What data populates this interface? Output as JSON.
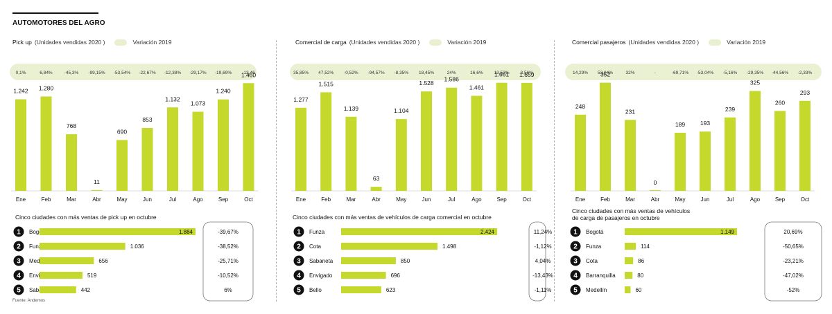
{
  "header": {
    "title": "AUTOMOTORES DEL AGRO"
  },
  "colors": {
    "bar": "#c5d92d",
    "pill": "#eaf1d3",
    "text": "#111111",
    "grid": "#bdbdbd"
  },
  "units_label": "(Unidades vendidas 2020 )",
  "variation_label": "Variación 2019",
  "source": "Fuente: Andemos",
  "panels": [
    {
      "title": "Pick up",
      "rank_title": [
        "Cinco ciudades con más ventas de pick up en octubre"
      ]
    },
    {
      "title": "Comercial de carga",
      "rank_title": [
        "Cinco ciudades con más ventas de vehículos de carga comercial en octubre"
      ]
    },
    {
      "title": "Comercial pasajeros",
      "rank_title": [
        "Cinco ciudades con más ventas de vehículos",
        "de carga de pasajeros en octubre"
      ]
    }
  ],
  "chart_data": [
    {
      "type": "bar",
      "title": "Pick up",
      "ylabel": "Unidades vendidas 2020",
      "categories": [
        "Ene",
        "Feb",
        "Mar",
        "Abr",
        "May",
        "Jun",
        "Jul",
        "Ago",
        "Sep",
        "Oct"
      ],
      "values": [
        1242,
        1280,
        768,
        11,
        690,
        853,
        1132,
        1073,
        1240,
        1460
      ],
      "value_labels": [
        "1.242",
        "1.280",
        "768",
        "11",
        "690",
        "853",
        "1.132",
        "1.073",
        "1.240",
        "1.460"
      ],
      "variation_2019": [
        "0,1%",
        "6,84%",
        "-45,3%",
        "-99,15%",
        "-53,54%",
        "-22,67%",
        "-12,38%",
        "-29,17%",
        "-19,69%",
        "-13,46"
      ],
      "ylim": [
        0,
        1500
      ]
    },
    {
      "type": "bar",
      "title": "Comercial de carga",
      "ylabel": "Unidades vendidas 2020",
      "categories": [
        "Ene",
        "Feb",
        "Mar",
        "Abr",
        "May",
        "Jun",
        "Jul",
        "Ago",
        "Sep",
        "Oct"
      ],
      "values": [
        1277,
        1515,
        1139,
        63,
        1104,
        1528,
        1586,
        1461,
        1661,
        1659
      ],
      "value_labels": [
        "1.277",
        "1.515",
        "1.139",
        "63",
        "1.104",
        "1.528",
        "1.586",
        "1.461",
        "1.661",
        "1.659"
      ],
      "variation_2019": [
        "35,85%",
        "47,52%",
        "-0,52%",
        "-94,57%",
        "-8,35%",
        "18,45%",
        "24%",
        "16,6%",
        "13,53%",
        "3,56%"
      ],
      "ylim": [
        0,
        1700
      ]
    },
    {
      "type": "bar",
      "title": "Comercial pasajeros",
      "ylabel": "Unidades vendidas 2020",
      "categories": [
        "Ene",
        "Feb",
        "Mar",
        "Abr",
        "May",
        "Jun",
        "Jul",
        "Ago",
        "Sep",
        "Oct"
      ],
      "values": [
        248,
        352,
        231,
        0,
        189,
        193,
        239,
        325,
        260,
        293
      ],
      "value_labels": [
        "248",
        "352",
        "231",
        "0",
        "189",
        "193",
        "239",
        "325",
        "260",
        "293"
      ],
      "variation_2019": [
        "14,29%",
        "53,04%",
        "32%",
        "-",
        "-69,71%",
        "-53,04%",
        "-5,16%",
        "-29,35%",
        "-44,56%",
        "-2,33%"
      ],
      "ylim": [
        0,
        360
      ]
    },
    {
      "type": "bar",
      "title": "Cinco ciudades con más ventas de pick up en octubre",
      "categories": [
        "Bogotá",
        "Funza",
        "Medellín",
        "Envigado",
        "Sabaneta"
      ],
      "values": [
        1884,
        1036,
        656,
        519,
        442
      ],
      "value_labels": [
        "1.884",
        "1.036",
        "656",
        "519",
        "442"
      ],
      "variation": [
        "-39,67%",
        "-38,52%",
        "-25,71%",
        "-10,52%",
        "6%"
      ]
    },
    {
      "type": "bar",
      "title": "Cinco ciudades con más ventas de vehículos de carga comercial en octubre",
      "categories": [
        "Funza",
        "Cota",
        "Sabaneta",
        "Envigado",
        "Bello"
      ],
      "values": [
        2424,
        1498,
        850,
        696,
        623
      ],
      "value_labels": [
        "2.424",
        "1.498",
        "850",
        "696",
        "623"
      ],
      "variation": [
        "11,24%",
        "-1,12%",
        "4,04%",
        "-13,43%",
        "-1,11%"
      ]
    },
    {
      "type": "bar",
      "title": "Cinco ciudades con más ventas de vehículos de carga de pasajeros en octubre",
      "categories": [
        "Bogotá",
        "Funza",
        "Cota",
        "Barranquilla",
        "Medellín"
      ],
      "values": [
        1149,
        114,
        86,
        80,
        60
      ],
      "value_labels": [
        "1.149",
        "114",
        "86",
        "80",
        "60"
      ],
      "variation": [
        "20,69%",
        "-50,65%",
        "-23,21%",
        "-47,02%",
        "-52%"
      ]
    }
  ]
}
